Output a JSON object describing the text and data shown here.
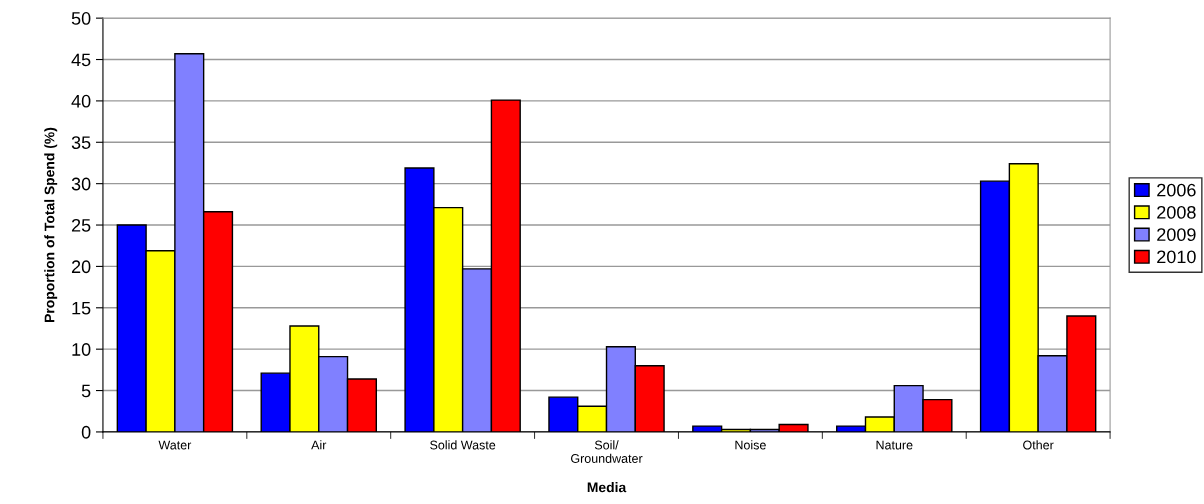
{
  "chart_data": {
    "type": "bar",
    "xlabel": "Media",
    "ylabel": "Proportion of Total Spend (%)",
    "categories": [
      "Water",
      "Air",
      "Solid Waste",
      "Soil/\nGroundwater",
      "Noise",
      "Nature",
      "Other"
    ],
    "series": [
      {
        "name": "2006",
        "color": "#0000ff",
        "values": [
          25.0,
          7.1,
          31.9,
          4.2,
          0.7,
          0.7,
          30.3
        ]
      },
      {
        "name": "2008",
        "color": "#ffff00",
        "values": [
          21.9,
          12.8,
          27.1,
          3.1,
          0.3,
          1.8,
          32.4
        ]
      },
      {
        "name": "2009",
        "color": "#8080ff",
        "values": [
          45.7,
          9.1,
          19.7,
          10.3,
          0.3,
          5.6,
          9.2
        ]
      },
      {
        "name": "2010",
        "color": "#ff0000",
        "values": [
          26.6,
          6.4,
          40.1,
          8.0,
          0.9,
          3.9,
          14.0
        ]
      }
    ],
    "ylim": [
      0,
      50
    ],
    "yticks": [
      0,
      5,
      10,
      15,
      20,
      25,
      30,
      35,
      40,
      45,
      50
    ],
    "grid": "y",
    "legend": "right"
  }
}
